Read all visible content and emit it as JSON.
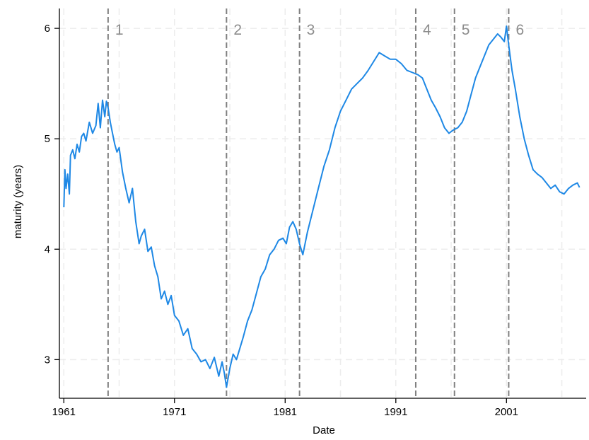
{
  "chart_data": {
    "type": "line",
    "xlabel": "Date",
    "ylabel": "maturity (years)",
    "xlim": [
      1960.6,
      2008.2
    ],
    "ylim": [
      2.65,
      6.18
    ],
    "xticks": [
      1961,
      1971,
      1981,
      1991,
      2001
    ],
    "yticks": [
      3,
      4,
      5,
      6
    ],
    "grid": true,
    "line_color": "#1e88e5",
    "vline_color": "#808080",
    "vertical_lines": [
      {
        "label": "1",
        "x": 1965.0
      },
      {
        "label": "2",
        "x": 1975.7
      },
      {
        "label": "3",
        "x": 1982.3
      },
      {
        "label": "4",
        "x": 1992.8
      },
      {
        "label": "5",
        "x": 1996.3
      },
      {
        "label": "6",
        "x": 2001.2
      }
    ],
    "series": [
      {
        "x": [
          1961.0,
          1961.1,
          1961.2,
          1961.35,
          1961.5,
          1961.6,
          1961.8,
          1962.0,
          1962.2,
          1962.4,
          1962.6,
          1962.8,
          1963.0,
          1963.3,
          1963.6,
          1963.9,
          1964.1,
          1964.3,
          1964.5,
          1964.7,
          1964.85,
          1965.0,
          1965.2,
          1965.4,
          1965.6,
          1965.8,
          1966.0,
          1966.3,
          1966.6,
          1966.9,
          1967.2,
          1967.5,
          1967.8,
          1968.0,
          1968.3,
          1968.6,
          1968.9,
          1969.2,
          1969.5,
          1969.8,
          1970.1,
          1970.4,
          1970.7,
          1971.0,
          1971.4,
          1971.8,
          1972.2,
          1972.6,
          1973.0,
          1973.4,
          1973.8,
          1974.2,
          1974.6,
          1975.0,
          1975.3,
          1975.5,
          1975.7,
          1976.0,
          1976.3,
          1976.6,
          1976.9,
          1977.2,
          1977.6,
          1978.0,
          1978.4,
          1978.8,
          1979.2,
          1979.6,
          1980.0,
          1980.4,
          1980.8,
          1981.1,
          1981.4,
          1981.7,
          1982.0,
          1982.3,
          1982.6,
          1983.0,
          1983.5,
          1984.0,
          1984.5,
          1985.0,
          1985.5,
          1986.0,
          1986.5,
          1987.0,
          1987.5,
          1988.0,
          1988.5,
          1989.0,
          1989.5,
          1990.0,
          1990.5,
          1991.0,
          1991.5,
          1992.0,
          1992.5,
          1993.0,
          1993.4,
          1993.8,
          1994.2,
          1994.6,
          1995.0,
          1995.4,
          1995.8,
          1996.2,
          1996.6,
          1997.0,
          1997.4,
          1997.8,
          1998.2,
          1998.6,
          1999.0,
          1999.4,
          1999.8,
          2000.2,
          2000.5,
          2000.8,
          2001.0,
          2001.2,
          2001.5,
          2001.8,
          2002.2,
          2002.6,
          2003.0,
          2003.4,
          2003.8,
          2004.2,
          2004.6,
          2005.0,
          2005.4,
          2005.8,
          2006.2,
          2006.6,
          2007.0,
          2007.4,
          2007.6
        ],
        "y": [
          4.38,
          4.72,
          4.55,
          4.68,
          4.5,
          4.85,
          4.9,
          4.82,
          4.95,
          4.88,
          5.02,
          5.05,
          4.98,
          5.15,
          5.05,
          5.12,
          5.32,
          5.1,
          5.35,
          5.2,
          5.34,
          5.28,
          5.15,
          5.05,
          4.95,
          4.88,
          4.92,
          4.7,
          4.55,
          4.42,
          4.55,
          4.25,
          4.05,
          4.12,
          4.18,
          3.98,
          4.02,
          3.85,
          3.75,
          3.55,
          3.62,
          3.5,
          3.58,
          3.4,
          3.35,
          3.22,
          3.28,
          3.1,
          3.05,
          2.98,
          3.0,
          2.92,
          3.02,
          2.85,
          2.98,
          2.88,
          2.75,
          2.92,
          3.05,
          3.0,
          3.1,
          3.2,
          3.35,
          3.45,
          3.6,
          3.75,
          3.82,
          3.95,
          4.0,
          4.08,
          4.1,
          4.05,
          4.2,
          4.25,
          4.18,
          4.05,
          3.95,
          4.15,
          4.35,
          4.55,
          4.75,
          4.9,
          5.1,
          5.25,
          5.35,
          5.45,
          5.5,
          5.55,
          5.62,
          5.7,
          5.78,
          5.75,
          5.72,
          5.72,
          5.68,
          5.62,
          5.6,
          5.58,
          5.55,
          5.45,
          5.35,
          5.28,
          5.2,
          5.1,
          5.05,
          5.08,
          5.1,
          5.15,
          5.25,
          5.4,
          5.55,
          5.65,
          5.75,
          5.85,
          5.9,
          5.95,
          5.92,
          5.88,
          6.02,
          5.85,
          5.62,
          5.45,
          5.2,
          5.0,
          4.85,
          4.72,
          4.68,
          4.65,
          4.6,
          4.55,
          4.58,
          4.52,
          4.5,
          4.55,
          4.58,
          4.6,
          4.56
        ]
      }
    ]
  }
}
